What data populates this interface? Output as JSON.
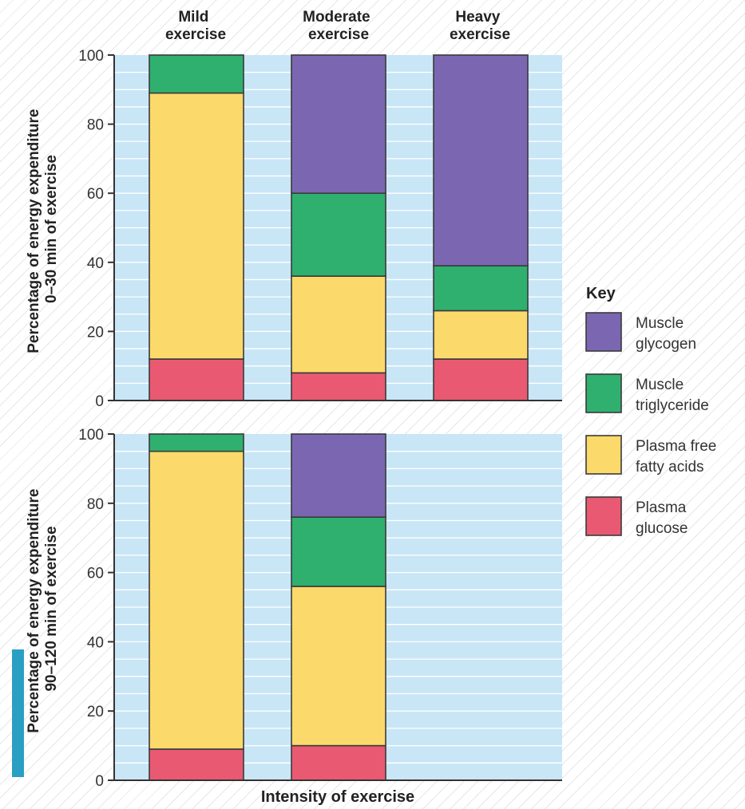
{
  "chart_data": {
    "type": "stacked-bar",
    "categories": [
      "Mild exercise",
      "Moderate exercise",
      "Heavy exercise"
    ],
    "category_labels": [
      [
        "Mild",
        "exercise"
      ],
      [
        "Moderate",
        "exercise"
      ],
      [
        "Heavy",
        "exercise"
      ]
    ],
    "xlabel": "Intensity of exercise",
    "ylim": [
      0,
      100
    ],
    "yticks": [
      0,
      20,
      40,
      60,
      80,
      100
    ],
    "grid": true,
    "colors": {
      "Muscle glycogen": "#7b67b1",
      "Muscle triglyceride": "#2fb06f",
      "Plasma free fatty acids": "#fcd96b",
      "Plasma glucose": "#e95a72",
      "plot_background": "#c9e6f7",
      "gridline": "#ffffff"
    },
    "legend": {
      "title": "Key",
      "placement": "right",
      "items": [
        {
          "series": "Muscle glycogen",
          "lines": [
            "Muscle",
            "glycogen"
          ]
        },
        {
          "series": "Muscle triglyceride",
          "lines": [
            "Muscle",
            "triglyceride"
          ]
        },
        {
          "series": "Plasma free fatty acids",
          "lines": [
            "Plasma free",
            "fatty acids"
          ]
        },
        {
          "series": "Plasma glucose",
          "lines": [
            "Plasma",
            "glucose"
          ]
        }
      ]
    },
    "panels": [
      {
        "ylabel": [
          "Percentage of energy expenditure",
          "0–30 min of exercise"
        ],
        "series": [
          {
            "name": "Plasma glucose",
            "values": [
              12,
              8,
              12
            ]
          },
          {
            "name": "Plasma free fatty acids",
            "values": [
              77,
              28,
              14
            ]
          },
          {
            "name": "Muscle triglyceride",
            "values": [
              11,
              24,
              13
            ]
          },
          {
            "name": "Muscle glycogen",
            "values": [
              0,
              40,
              61
            ]
          }
        ]
      },
      {
        "ylabel": [
          "Percentage of energy expenditure",
          "90–120 min of exercise"
        ],
        "series": [
          {
            "name": "Plasma glucose",
            "values": [
              9,
              10,
              null
            ]
          },
          {
            "name": "Plasma free fatty acids",
            "values": [
              86,
              46,
              null
            ]
          },
          {
            "name": "Muscle triglyceride",
            "values": [
              5,
              20,
              null
            ]
          },
          {
            "name": "Muscle glycogen",
            "values": [
              0,
              24,
              null
            ]
          }
        ]
      }
    ]
  }
}
